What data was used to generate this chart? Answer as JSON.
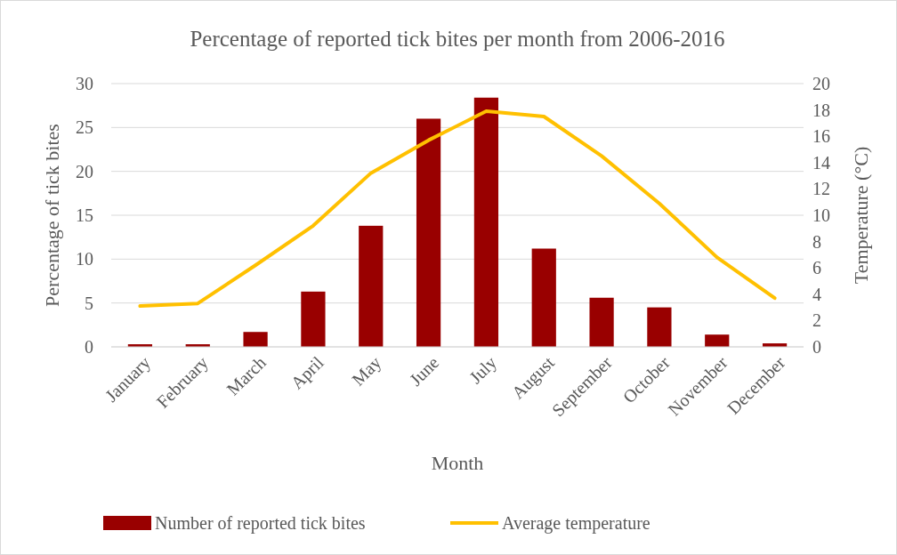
{
  "chart_data": {
    "type": "bar",
    "title": "Percentage of reported tick bites per month from 2006-2016",
    "xlabel": "Month",
    "ylabel": "Percentage of tick bites",
    "y2label": "Temperature (°C)",
    "categories": [
      "January",
      "February",
      "March",
      "April",
      "May",
      "June",
      "July",
      "August",
      "September",
      "October",
      "November",
      "December"
    ],
    "series": [
      {
        "name": "Number of reported tick bites",
        "color": "#990000",
        "values": [
          0.3,
          0.3,
          1.7,
          6.3,
          13.8,
          26.0,
          28.4,
          11.2,
          5.6,
          4.5,
          1.4,
          0.4
        ]
      },
      {
        "name": "Average temperature",
        "type": "line",
        "axis": "y2",
        "color": "#ffc000",
        "values": [
          3.1,
          3.3,
          6.2,
          9.2,
          13.2,
          15.7,
          17.9,
          17.5,
          14.5,
          10.9,
          6.8,
          3.7
        ]
      }
    ],
    "ylim": [
      0,
      30
    ],
    "yticks": [
      0,
      5,
      10,
      15,
      20,
      25,
      30
    ],
    "y2lim": [
      0,
      20
    ],
    "y2ticks": [
      0,
      2,
      4,
      6,
      8,
      10,
      12,
      14,
      16,
      18,
      20
    ],
    "grid": "y",
    "legend": "bottom",
    "marker": "none",
    "line_style": "solid"
  }
}
